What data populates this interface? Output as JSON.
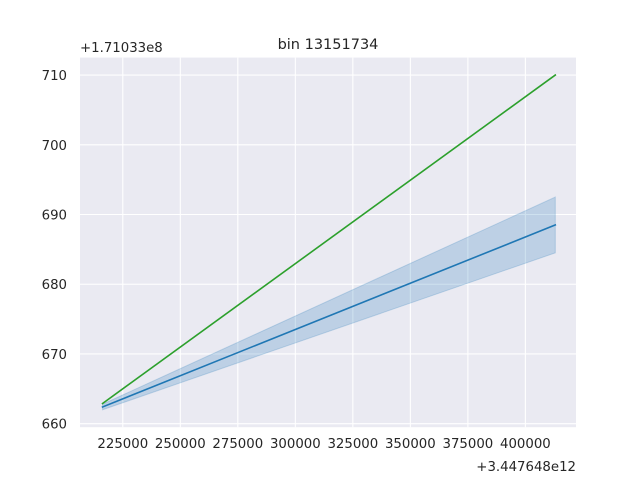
{
  "chart_data": {
    "type": "line",
    "title": "bin 13151734",
    "xlabel": "",
    "ylabel": "",
    "x_offset_label": "+3.447648e12",
    "y_offset_label": "+1.71033e8",
    "xlim": [
      206400,
      422000
    ],
    "ylim": [
      659.5,
      712.5
    ],
    "x_ticks": [
      225000,
      250000,
      275000,
      300000,
      325000,
      350000,
      375000,
      400000
    ],
    "x_tick_labels": [
      "225000",
      "250000",
      "275000",
      "300000",
      "325000",
      "350000",
      "375000",
      "400000"
    ],
    "y_ticks": [
      660,
      670,
      680,
      690,
      700,
      710
    ],
    "y_tick_labels": [
      "660",
      "670",
      "680",
      "690",
      "700",
      "710"
    ],
    "grid": true,
    "series": [
      {
        "color": "#2ca02c",
        "x": [
          216200,
          413000
        ],
        "y": [
          662.9,
          710.0
        ]
      },
      {
        "color": "#1f77b4",
        "x": [
          216200,
          413000
        ],
        "y": [
          662.4,
          688.5
        ],
        "band_lower": [
          662.0,
          684.5
        ],
        "band_upper": [
          662.8,
          692.5
        ],
        "band_color": "#1f77b4"
      }
    ]
  }
}
